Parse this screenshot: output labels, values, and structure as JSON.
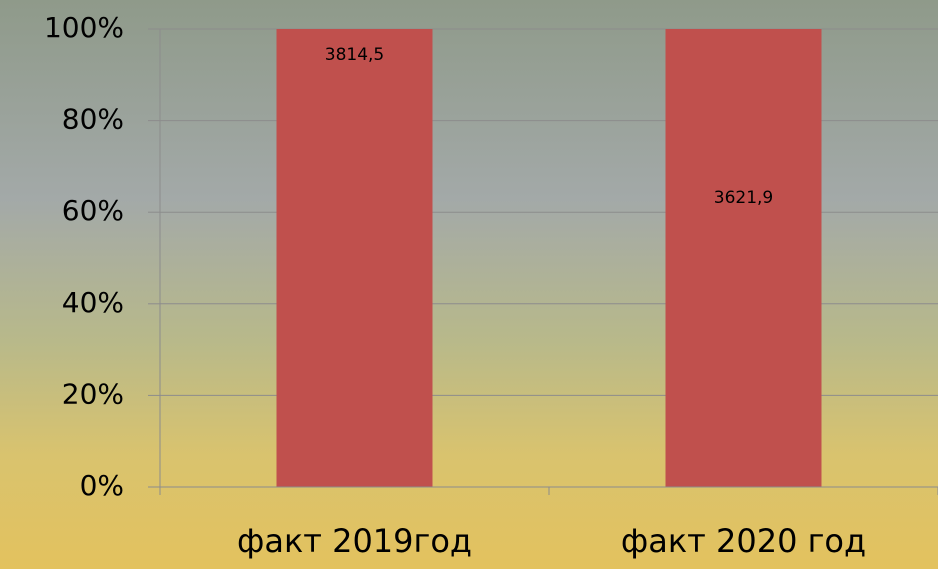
{
  "chart_data": {
    "type": "bar",
    "stacking": "percent",
    "categories": [
      "факт 2019год",
      "факт 2020 год"
    ],
    "series": [
      {
        "color": "#c0504d",
        "values": [
          3814.5,
          3621.9
        ],
        "value_labels": [
          "3814,5",
          "3621,9"
        ]
      }
    ],
    "ylim": [
      0,
      100
    ],
    "yticks": [
      {
        "value": 0,
        "label": "0%"
      },
      {
        "value": 20,
        "label": "20%"
      },
      {
        "value": 40,
        "label": "40%"
      },
      {
        "value": 60,
        "label": "60%"
      },
      {
        "value": 80,
        "label": "80%"
      },
      {
        "value": 100,
        "label": "100%"
      }
    ],
    "grid": true
  }
}
